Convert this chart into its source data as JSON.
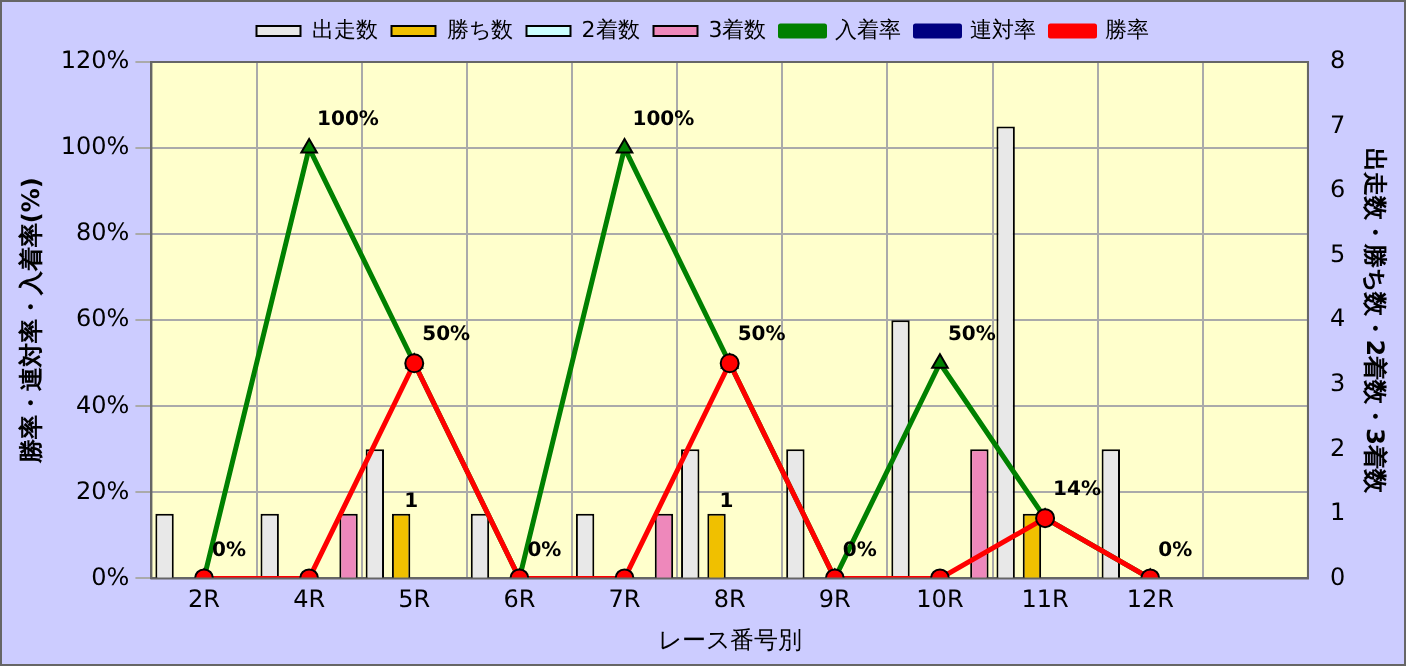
{
  "chart_data": {
    "type": "bar",
    "xlabel": "レース番号別",
    "ylabel": "勝率・連対率・入着率(%)",
    "y2label": "出走数・勝ち数・2着数・3着数",
    "categories": [
      "2R",
      "4R",
      "5R",
      "6R",
      "7R",
      "8R",
      "9R",
      "10R",
      "11R",
      "12R",
      null
    ],
    "series": [
      {
        "name": "出走数",
        "axis": "y2",
        "color": "#e8e8e8",
        "values": [
          1,
          1,
          2,
          1,
          1,
          2,
          2,
          4,
          7,
          2,
          null
        ]
      },
      {
        "name": "勝ち数",
        "axis": "y2",
        "color": "#f0c000",
        "values": [
          0,
          0,
          1,
          0,
          0,
          1,
          0,
          0,
          1,
          0,
          null
        ],
        "value_labels": [
          null,
          null,
          "1",
          null,
          null,
          "1",
          null,
          null,
          null,
          null,
          null
        ]
      },
      {
        "name": "2着数",
        "axis": "y2",
        "color": "#ccffff",
        "values": [
          0,
          0,
          0,
          0,
          0,
          0,
          0,
          0,
          0,
          0,
          null
        ]
      },
      {
        "name": "3着数",
        "axis": "y2",
        "color": "#ee88bb",
        "values": [
          0,
          1,
          0,
          0,
          1,
          0,
          0,
          2,
          0,
          0,
          null
        ]
      },
      {
        "name": "入着率",
        "type": "line",
        "marker": "triangle",
        "color": "#008000",
        "values": [
          0,
          100,
          50,
          0,
          100,
          50,
          0,
          50,
          14,
          0,
          null
        ],
        "value_labels": [
          "0%",
          "100%",
          "50%",
          "0%",
          "100%",
          "50%",
          "0%",
          "50%",
          "14%",
          "0%",
          null
        ]
      },
      {
        "name": "連対率",
        "type": "line",
        "marker": "diamond",
        "color": "#000080",
        "values": [
          null,
          null,
          null,
          null,
          null,
          null,
          null,
          null,
          null,
          null,
          null
        ]
      },
      {
        "name": "勝率",
        "type": "line",
        "marker": "circle",
        "color": "#ff0000",
        "values": [
          0,
          0,
          50,
          0,
          0,
          50,
          0,
          0,
          14,
          0,
          null
        ]
      }
    ],
    "ylim": [
      0,
      120
    ],
    "yticks": [
      {
        "value": 0,
        "label": "0%"
      },
      {
        "value": 20,
        "label": "20%"
      },
      {
        "value": 40,
        "label": "40%"
      },
      {
        "value": 60,
        "label": "60%"
      },
      {
        "value": 80,
        "label": "80%"
      },
      {
        "value": 100,
        "label": "100%"
      },
      {
        "value": 120,
        "label": "120%"
      }
    ],
    "y2lim": [
      0,
      8
    ],
    "y2ticks": [
      0,
      1,
      2,
      3,
      4,
      5,
      6,
      7,
      8
    ],
    "grid": true,
    "legend": "top"
  }
}
